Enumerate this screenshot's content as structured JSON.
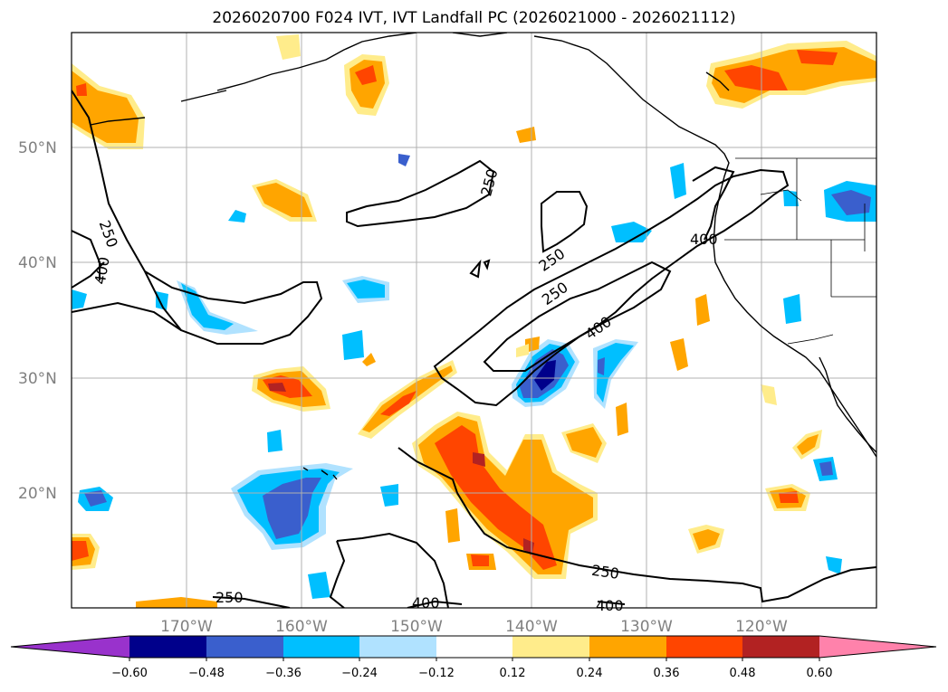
{
  "title": "2026020700 F024 IVT, IVT Landfall PC (2026021000 - 2026021112)",
  "lat_labels": [
    "50°N",
    "40°N",
    "30°N",
    "20°N"
  ],
  "lon_labels": [
    "170°W",
    "160°W",
    "150°W",
    "140°W",
    "130°W",
    "120°W"
  ],
  "contour_labels": {
    "c250_a": "250",
    "c250_b": "250",
    "c250_c": "250",
    "c250_d": "250",
    "c250_e": "250",
    "c250_f": "250",
    "c400_a": "400",
    "c400_b": "400",
    "c400_c": "400",
    "c400_d": "400",
    "c400_e": "400"
  },
  "colorbar": {
    "ticks": [
      "−0.60",
      "−0.48",
      "−0.36",
      "−0.24",
      "−0.12",
      "0.12",
      "0.24",
      "0.36",
      "0.48",
      "0.60"
    ],
    "colors": {
      "under": "#9932cc",
      "c1": "#00008b",
      "c2": "#3a5fcd",
      "c3": "#00bfff",
      "c4": "#b0e2ff",
      "c5": "#ffffff",
      "c6": "#ffec8b",
      "c7": "#ffa500",
      "c8": "#ff4500",
      "c9": "#b22222",
      "over": "#ff82ab"
    }
  }
}
